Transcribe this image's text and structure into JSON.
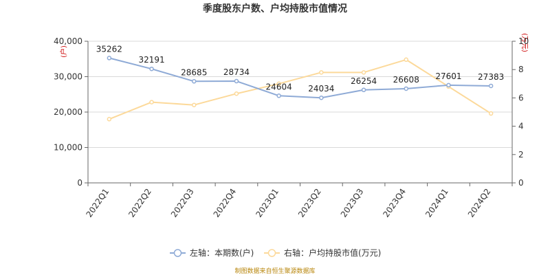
{
  "chart_data": {
    "type": "line",
    "title": "季度股东户数、户均持股市值情况",
    "categories": [
      "2022Q1",
      "2022Q2",
      "2022Q3",
      "2022Q4",
      "2023Q1",
      "2023Q2",
      "2023Q3",
      "2023Q4",
      "2024Q1",
      "2024Q2"
    ],
    "left_axis": {
      "unit": "(户)",
      "ylim": [
        0,
        40000
      ],
      "ticks": [
        0,
        10000,
        20000,
        30000,
        40000
      ],
      "tick_labels": [
        "0",
        "10,000",
        "20,000",
        "30,000",
        "40,000"
      ]
    },
    "right_axis": {
      "unit": "(万元)",
      "ylim": [
        0,
        10
      ],
      "ticks": [
        0,
        2,
        4,
        6,
        8,
        10
      ],
      "tick_labels": [
        "0",
        "2",
        "4",
        "6",
        "8",
        "10"
      ]
    },
    "series": [
      {
        "name": "左轴：本期数(户)",
        "axis": "left",
        "color": "#8eaad6",
        "values": [
          35262,
          32191,
          28685,
          28734,
          24604,
          24034,
          26254,
          26608,
          27601,
          27383
        ],
        "labels": [
          "35262",
          "32191",
          "28685",
          "28734",
          "24604",
          "24034",
          "26254",
          "26608",
          "27601",
          "27383"
        ]
      },
      {
        "name": "右轴：户均持股市值(万元)",
        "axis": "right",
        "color": "#fcd99a",
        "values": [
          4.5,
          5.7,
          5.5,
          6.3,
          7.0,
          7.8,
          7.8,
          8.7,
          6.8,
          4.9
        ]
      }
    ],
    "grid": true,
    "legend_position": "bottom"
  },
  "source": "制图数据来自恒生聚源数据库"
}
